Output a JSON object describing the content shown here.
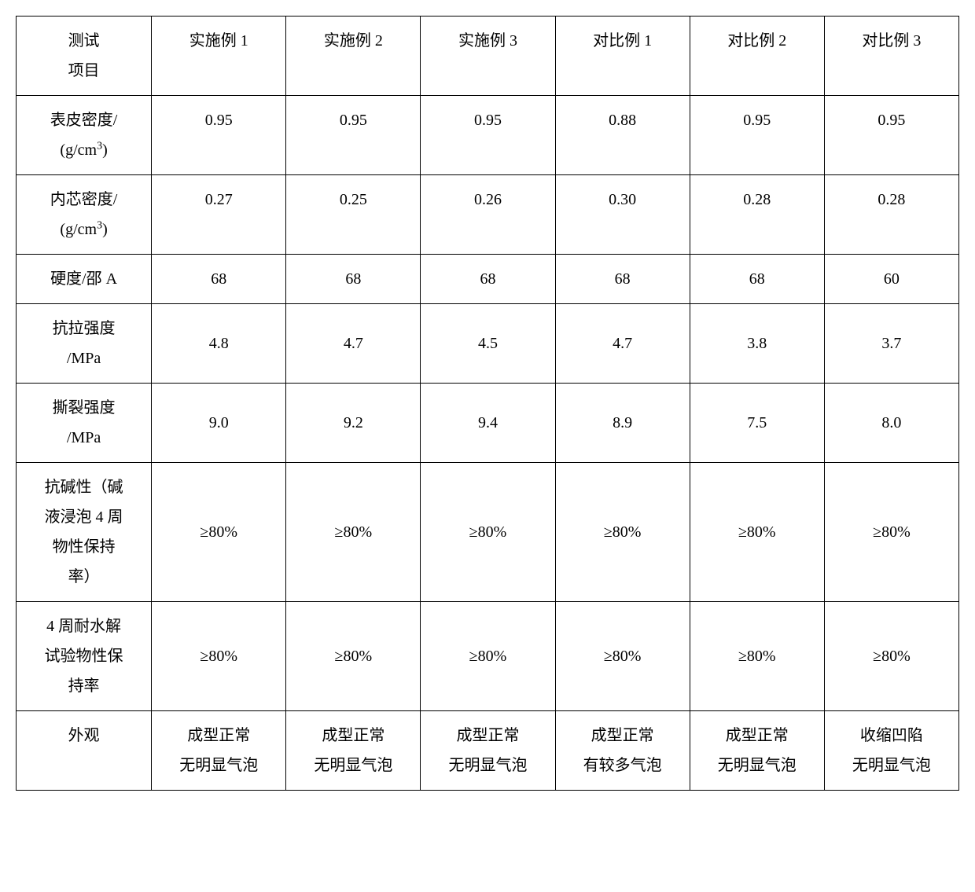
{
  "table": {
    "columns": [
      "测试\n项目",
      "实施例 1",
      "实施例 2",
      "实施例 3",
      "对比例 1",
      "对比例 2",
      "对比例 3"
    ],
    "rows": [
      {
        "label_line1": "表皮密度/",
        "label_line2": "(g/cm",
        "label_sup": "3",
        "label_suffix": ")",
        "cells": [
          "0.95",
          "0.95",
          "0.95",
          "0.88",
          "0.95",
          "0.95"
        ]
      },
      {
        "label_line1": "内芯密度/",
        "label_line2": "(g/cm",
        "label_sup": "3",
        "label_suffix": ")",
        "cells": [
          "0.27",
          "0.25",
          "0.26",
          "0.30",
          "0.28",
          "0.28"
        ]
      },
      {
        "label": "硬度/邵 A",
        "cells": [
          "68",
          "68",
          "68",
          "68",
          "68",
          "60"
        ]
      },
      {
        "label_line1": "抗拉强度",
        "label_line2": "/MPa",
        "cells": [
          "4.8",
          "4.7",
          "4.5",
          "4.7",
          "3.8",
          "3.7"
        ]
      },
      {
        "label_line1": "撕裂强度",
        "label_line2": "/MPa",
        "cells": [
          "9.0",
          "9.2",
          "9.4",
          "8.9",
          "7.5",
          "8.0"
        ]
      },
      {
        "label_line1": "抗碱性（碱",
        "label_line2": "液浸泡 4 周",
        "label_line3": "物性保持",
        "label_line4": "率）",
        "cells": [
          "≥80%",
          "≥80%",
          "≥80%",
          "≥80%",
          "≥80%",
          "≥80%"
        ]
      },
      {
        "label_line1": "4 周耐水解",
        "label_line2": "试验物性保",
        "label_line3": "持率",
        "cells": [
          "≥80%",
          "≥80%",
          "≥80%",
          "≥80%",
          "≥80%",
          "≥80%"
        ]
      },
      {
        "label": "外观",
        "cells_twoline": [
          {
            "l1": "成型正常",
            "l2": "无明显气泡"
          },
          {
            "l1": "成型正常",
            "l2": "无明显气泡"
          },
          {
            "l1": "成型正常",
            "l2": "无明显气泡"
          },
          {
            "l1": "成型正常",
            "l2": "有较多气泡"
          },
          {
            "l1": "成型正常",
            "l2": "无明显气泡"
          },
          {
            "l1": "收缩凹陷",
            "l2": "无明显气泡"
          }
        ]
      }
    ],
    "border_color": "#000000",
    "background_color": "#ffffff",
    "font_size": 20,
    "text_color": "#000000"
  }
}
